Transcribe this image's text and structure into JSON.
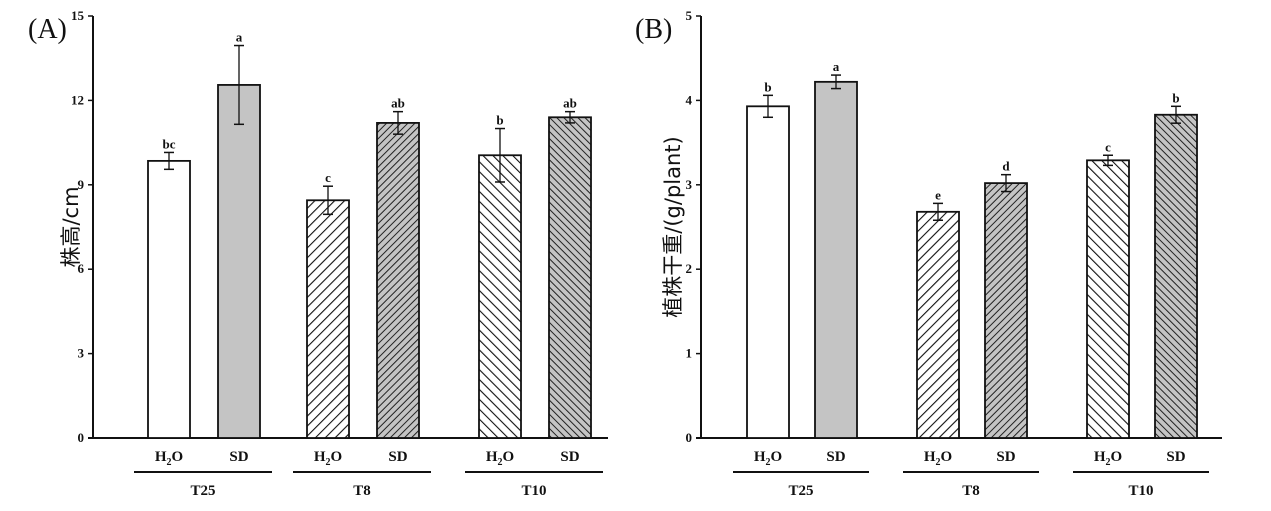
{
  "chart_data": [
    {
      "type": "bar",
      "panel_label": "(A)",
      "ylabel": "株高/cm",
      "ylim": [
        0,
        15
      ],
      "yticks": [
        0,
        3,
        6,
        9,
        12,
        15
      ],
      "groups": [
        "T25",
        "T8",
        "T10"
      ],
      "treatments": [
        "H2O",
        "SD"
      ],
      "bars": [
        {
          "group": "T25",
          "treatment": "H2O",
          "value": 9.85,
          "error": 0.3,
          "sig": "bc",
          "pattern": "white"
        },
        {
          "group": "T25",
          "treatment": "SD",
          "value": 12.55,
          "error": 1.4,
          "sig": "a",
          "pattern": "gray"
        },
        {
          "group": "T8",
          "treatment": "H2O",
          "value": 8.45,
          "error": 0.5,
          "sig": "c",
          "pattern": "fwd-white"
        },
        {
          "group": "T8",
          "treatment": "SD",
          "value": 11.2,
          "error": 0.4,
          "sig": "ab",
          "pattern": "fwd-gray"
        },
        {
          "group": "T10",
          "treatment": "H2O",
          "value": 10.05,
          "error": 0.95,
          "sig": "b",
          "pattern": "back-white"
        },
        {
          "group": "T10",
          "treatment": "SD",
          "value": 11.4,
          "error": 0.2,
          "sig": "ab",
          "pattern": "back-gray"
        }
      ]
    },
    {
      "type": "bar",
      "panel_label": "(B)",
      "ylabel": "植株干重/(g/plant)",
      "ylim": [
        0,
        5
      ],
      "yticks": [
        0,
        1,
        2,
        3,
        4,
        5
      ],
      "groups": [
        "T25",
        "T8",
        "T10"
      ],
      "treatments": [
        "H2O",
        "SD"
      ],
      "bars": [
        {
          "group": "T25",
          "treatment": "H2O",
          "value": 3.93,
          "error": 0.13,
          "sig": "b",
          "pattern": "white"
        },
        {
          "group": "T25",
          "treatment": "SD",
          "value": 4.22,
          "error": 0.08,
          "sig": "a",
          "pattern": "gray"
        },
        {
          "group": "T8",
          "treatment": "H2O",
          "value": 2.68,
          "error": 0.1,
          "sig": "e",
          "pattern": "fwd-white"
        },
        {
          "group": "T8",
          "treatment": "SD",
          "value": 3.02,
          "error": 0.1,
          "sig": "d",
          "pattern": "fwd-gray"
        },
        {
          "group": "T10",
          "treatment": "H2O",
          "value": 3.29,
          "error": 0.06,
          "sig": "c",
          "pattern": "back-white"
        },
        {
          "group": "T10",
          "treatment": "SD",
          "value": 3.83,
          "error": 0.1,
          "sig": "b",
          "pattern": "back-gray"
        }
      ]
    }
  ],
  "colors": {
    "gray": "#c4c4c4",
    "ink": "#111111",
    "white": "#ffffff"
  }
}
